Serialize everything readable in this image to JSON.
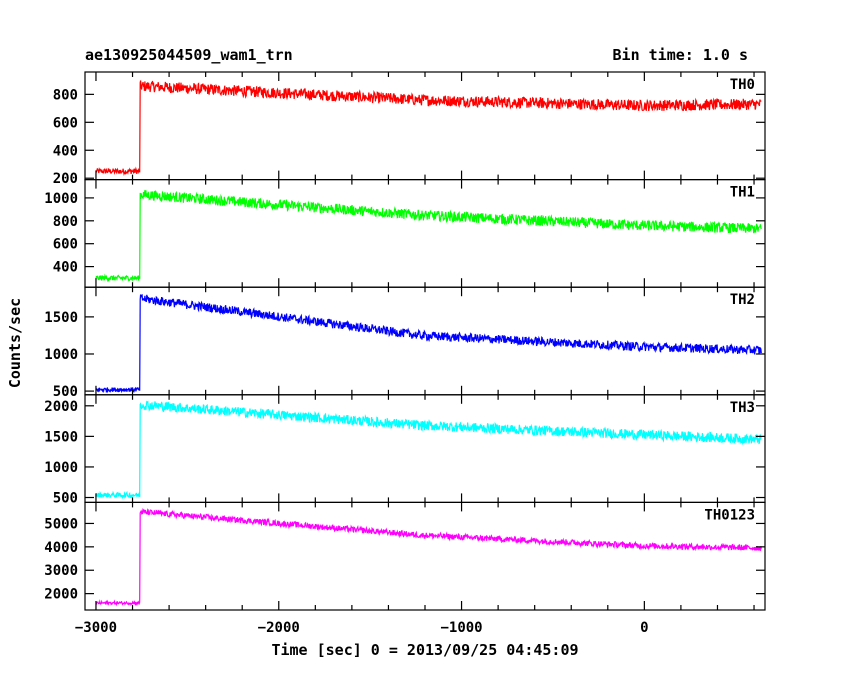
{
  "header": {
    "left_title": "ae130925044509_wam1_trn",
    "right_title": "Bin time: 1.0 s"
  },
  "chart_data": {
    "type": "line",
    "xlabel": "Time [sec] 0 = 2013/09/25 04:45:09",
    "ylabel": "Counts/sec",
    "xlim": [
      -3060,
      660
    ],
    "xticks": [
      -3000,
      -2000,
      -1000,
      0
    ],
    "xtick_labels": [
      "−3000",
      "−2000",
      "−1000",
      "0"
    ],
    "step_time": -2760,
    "panels": [
      {
        "label": "TH0",
        "color": "#ff0000",
        "ylim": [
          190,
          960
        ],
        "yticks": [
          200,
          400,
          600,
          800
        ],
        "pre": 250,
        "post_start": 860,
        "post_mid": 760,
        "post_low": 720,
        "post_end": 730,
        "noise": 80
      },
      {
        "label": "TH1",
        "color": "#00ff00",
        "ylim": [
          220,
          1160
        ],
        "yticks": [
          400,
          600,
          800,
          1000
        ],
        "pre": 300,
        "post_start": 1030,
        "post_mid": 850,
        "post_low": 760,
        "post_end": 730,
        "noise": 90
      },
      {
        "label": "TH2",
        "color": "#0000ff",
        "ylim": [
          450,
          1900
        ],
        "yticks": [
          500,
          1000,
          1500
        ],
        "pre": 520,
        "post_start": 1750,
        "post_mid": 1250,
        "post_low": 1100,
        "post_end": 1050,
        "noise": 120
      },
      {
        "label": "TH3",
        "color": "#00ffff",
        "ylim": [
          420,
          2180
        ],
        "yticks": [
          500,
          1000,
          1500,
          2000
        ],
        "pre": 540,
        "post_start": 2020,
        "post_mid": 1680,
        "post_low": 1530,
        "post_end": 1450,
        "noise": 160
      },
      {
        "label": "TH0123",
        "color": "#ff00ff",
        "ylim": [
          1300,
          5900
        ],
        "yticks": [
          2000,
          3000,
          4000,
          5000
        ],
        "pre": 1600,
        "post_start": 5500,
        "post_mid": 4500,
        "post_low": 4050,
        "post_end": 3950,
        "noise": 250
      }
    ]
  }
}
